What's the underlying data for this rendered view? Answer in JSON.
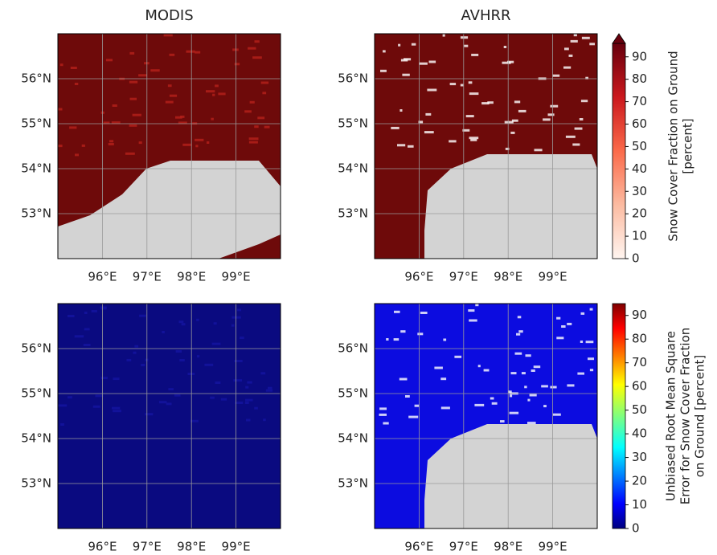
{
  "panel_titles": [
    "MODIS",
    "AVHRR"
  ],
  "lat_lim": [
    52,
    57
  ],
  "lon_lim": [
    95,
    100
  ],
  "lat_ticks": [
    {
      "value": 56,
      "label": "56°N"
    },
    {
      "value": 55,
      "label": "55°N"
    },
    {
      "value": 54,
      "label": "54°N"
    },
    {
      "value": 53,
      "label": "53°N"
    }
  ],
  "lon_ticks": [
    {
      "value": 96,
      "label": "96°E"
    },
    {
      "value": 97,
      "label": "97°E"
    },
    {
      "value": 98,
      "label": "98°E"
    },
    {
      "value": 99,
      "label": "99°E"
    }
  ],
  "colorbars": [
    {
      "label_lines": [
        "Snow Cover Fraction on Ground",
        "[percent]"
      ],
      "lim": [
        0,
        96
      ],
      "ticks": [
        0,
        10,
        20,
        30,
        40,
        50,
        60,
        70,
        80,
        90
      ],
      "colormap": "Reds",
      "extend_max": true
    },
    {
      "label_lines": [
        "Unbiased Root Mean Square",
        "Error for Snow Cover Fraction",
        "on Ground [percent]"
      ],
      "lim": [
        0,
        95
      ],
      "ticks": [
        0,
        10,
        20,
        30,
        40,
        50,
        60,
        70,
        80,
        90
      ],
      "colormap": "jet",
      "extend_max": false
    }
  ]
}
